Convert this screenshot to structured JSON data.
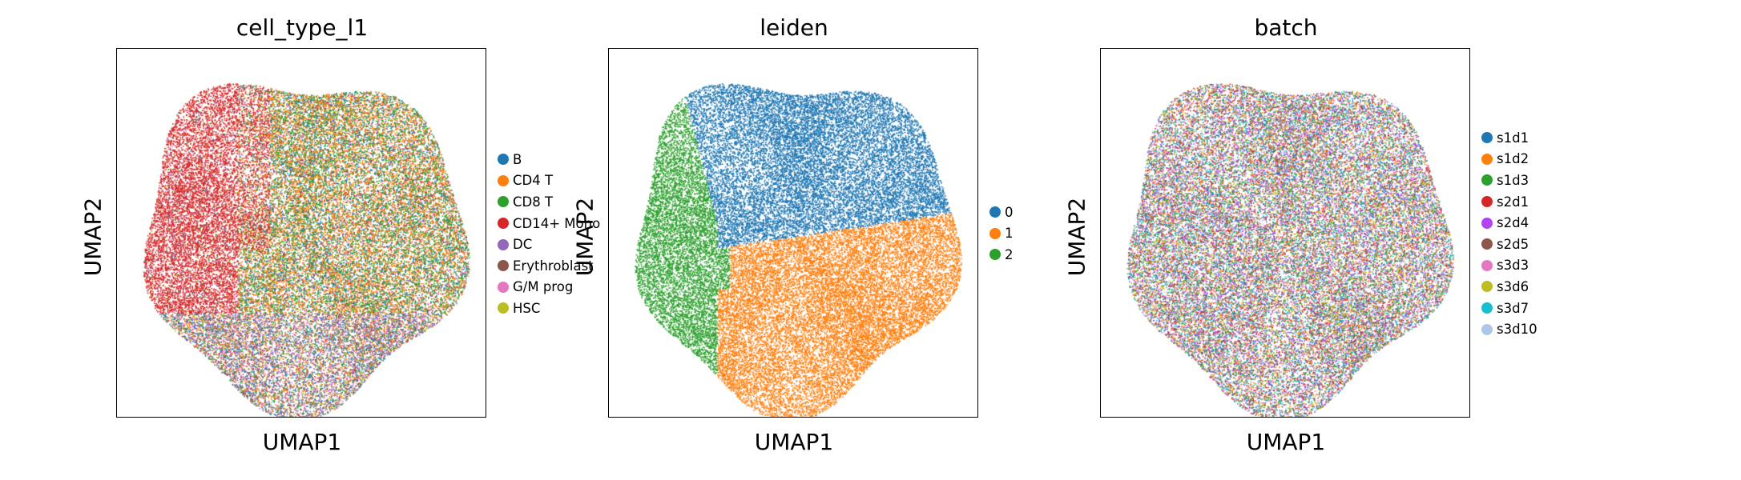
{
  "chart_data": [
    {
      "type": "scatter",
      "title": "cell_type_l1",
      "xlabel": "UMAP1",
      "ylabel": "UMAP2",
      "grid": false,
      "ticks": "none",
      "legend": "right",
      "categories": [
        "B",
        "CD4 T",
        "CD8 T",
        "CD14+ Mono",
        "DC",
        "Erythroblast",
        "G/M prog",
        "HSC"
      ],
      "colors": [
        "#1f77b4",
        "#ff7f0e",
        "#2ca02c",
        "#d62728",
        "#9467bd",
        "#8c564b",
        "#e377c2",
        "#bcbd22"
      ]
    },
    {
      "type": "scatter",
      "title": "leiden",
      "xlabel": "UMAP1",
      "ylabel": "UMAP2",
      "grid": false,
      "ticks": "none",
      "legend": "right",
      "categories": [
        "0",
        "1",
        "2"
      ],
      "colors": [
        "#1f77b4",
        "#ff7f0e",
        "#2ca02c"
      ]
    },
    {
      "type": "scatter",
      "title": "batch",
      "xlabel": "UMAP1",
      "ylabel": "UMAP2",
      "grid": false,
      "ticks": "none",
      "legend": "right",
      "categories": [
        "s1d1",
        "s1d2",
        "s1d3",
        "s2d1",
        "s2d4",
        "s2d5",
        "s3d3",
        "s3d6",
        "s3d7",
        "s3d10"
      ],
      "colors": [
        "#1f77b4",
        "#ff7f0e",
        "#2ca02c",
        "#d62728",
        "#b344f5",
        "#8c564b",
        "#e377c2",
        "#bcbd22",
        "#17becf",
        "#aec7e8"
      ]
    }
  ]
}
